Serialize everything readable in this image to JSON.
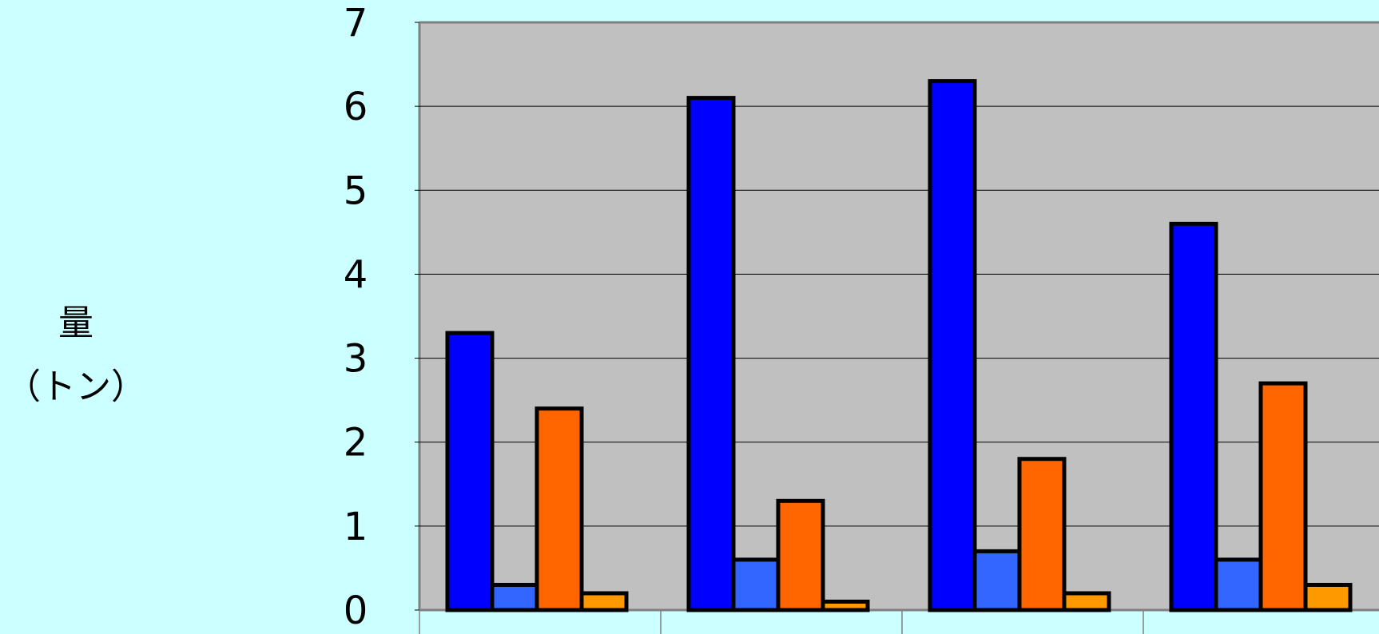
{
  "chart_data": {
    "type": "bar",
    "categories": [
      "",
      "",
      "",
      ""
    ],
    "series": [
      {
        "color": "#0000ff",
        "values": [
          3.3,
          6.1,
          6.3,
          4.6
        ]
      },
      {
        "color": "#3366ff",
        "values": [
          0.3,
          0.6,
          0.7,
          0.6
        ]
      },
      {
        "color": "#ff6600",
        "values": [
          2.4,
          1.3,
          1.8,
          2.7
        ]
      },
      {
        "color": "#ff9900",
        "values": [
          0.2,
          0.1,
          0.2,
          0.3
        ]
      }
    ],
    "ylabel": "量",
    "ylabel_unit": "（トン）",
    "ylim": [
      0,
      7
    ],
    "yticks": [
      "0",
      "1",
      "2",
      "3",
      "4",
      "5",
      "6",
      "7"
    ],
    "grid": true,
    "plot_background": "#c0c0c0",
    "page_background": "#ccffff"
  }
}
